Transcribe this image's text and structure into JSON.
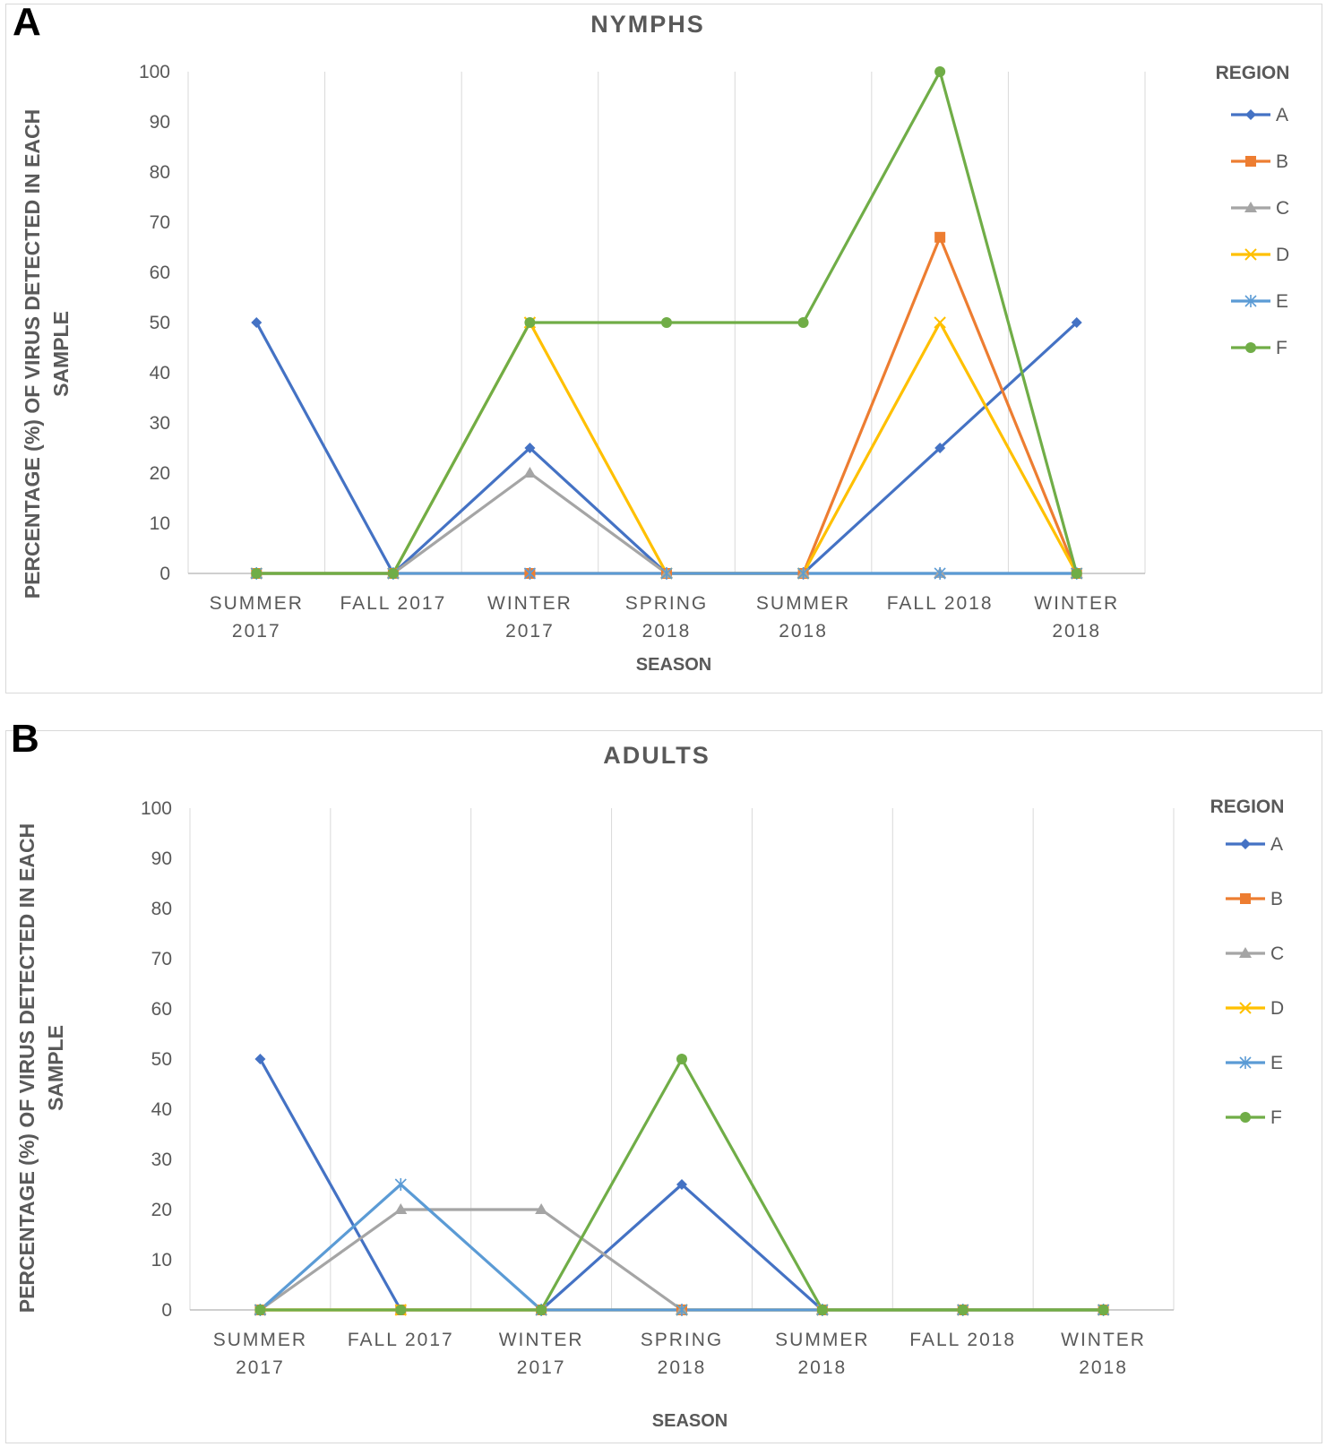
{
  "panel_labels": [
    "A",
    "B"
  ],
  "chart_data": [
    {
      "type": "line",
      "title": "NYMPHS",
      "xlabel": "SEASON",
      "ylabel": "PERCENTAGE (%) OF VIRUS DETECTED IN EACH SAMPLE",
      "ylabel_lines": [
        "PERCENTAGE (%) OF VIRUS DETECTED IN EACH",
        "SAMPLE"
      ],
      "ylim": [
        0,
        100
      ],
      "yticks": [
        0,
        10,
        20,
        30,
        40,
        50,
        60,
        70,
        80,
        90,
        100
      ],
      "grid": "vertical",
      "legend_title": "REGION",
      "legend_position": "right",
      "categories": [
        [
          "SUMMER",
          "2017"
        ],
        [
          "FALL 2017"
        ],
        [
          "WINTER",
          "2017"
        ],
        [
          "SPRING",
          "2018"
        ],
        [
          "SUMMER",
          "2018"
        ],
        [
          "FALL 2018"
        ],
        [
          "WINTER",
          "2018"
        ]
      ],
      "series": [
        {
          "name": "A",
          "color": "#4472c4",
          "marker": "diamond",
          "values": [
            50,
            0,
            25,
            0,
            0,
            25,
            50
          ]
        },
        {
          "name": "B",
          "color": "#ed7d31",
          "marker": "square",
          "values": [
            0,
            0,
            0,
            0,
            0,
            67,
            0
          ]
        },
        {
          "name": "C",
          "color": "#a5a5a5",
          "marker": "triangle",
          "values": [
            0,
            0,
            20,
            0,
            0,
            0,
            0
          ]
        },
        {
          "name": "D",
          "color": "#ffc000",
          "marker": "x",
          "values": [
            0,
            0,
            50,
            0,
            0,
            50,
            0
          ]
        },
        {
          "name": "E",
          "color": "#5b9bd5",
          "marker": "star",
          "values": [
            0,
            0,
            0,
            0,
            0,
            0,
            0
          ]
        },
        {
          "name": "F",
          "color": "#70ad47",
          "marker": "circle",
          "values": [
            0,
            0,
            50,
            50,
            50,
            100,
            0
          ]
        }
      ]
    },
    {
      "type": "line",
      "title": "ADULTS",
      "xlabel": "SEASON",
      "ylabel": "PERCENTAGE (%) OF VIRUS DETECTED IN EACH SAMPLE",
      "ylabel_lines": [
        "PERCENTAGE (%) OF VIRUS DETECTED IN EACH",
        "SAMPLE"
      ],
      "ylim": [
        0,
        100
      ],
      "yticks": [
        0,
        10,
        20,
        30,
        40,
        50,
        60,
        70,
        80,
        90,
        100
      ],
      "grid": "vertical",
      "legend_title": "REGION",
      "legend_position": "right",
      "categories": [
        [
          "SUMMER",
          "2017"
        ],
        [
          "FALL 2017"
        ],
        [
          "WINTER",
          "2017"
        ],
        [
          "SPRING",
          "2018"
        ],
        [
          "SUMMER",
          "2018"
        ],
        [
          "FALL 2018"
        ],
        [
          "WINTER",
          "2018"
        ]
      ],
      "series": [
        {
          "name": "A",
          "color": "#4472c4",
          "marker": "diamond",
          "values": [
            50,
            0,
            0,
            25,
            0,
            0,
            0
          ]
        },
        {
          "name": "B",
          "color": "#ed7d31",
          "marker": "square",
          "values": [
            0,
            0,
            0,
            0,
            0,
            0,
            0
          ]
        },
        {
          "name": "C",
          "color": "#a5a5a5",
          "marker": "triangle",
          "values": [
            0,
            20,
            20,
            0,
            0,
            0,
            0
          ]
        },
        {
          "name": "D",
          "color": "#ffc000",
          "marker": "x",
          "values": [
            0,
            0,
            0,
            0,
            0,
            0,
            0
          ]
        },
        {
          "name": "E",
          "color": "#5b9bd5",
          "marker": "star",
          "values": [
            0,
            25,
            0,
            0,
            0,
            0,
            0
          ]
        },
        {
          "name": "F",
          "color": "#70ad47",
          "marker": "circle",
          "values": [
            0,
            0,
            0,
            50,
            0,
            0,
            0
          ]
        }
      ]
    }
  ]
}
